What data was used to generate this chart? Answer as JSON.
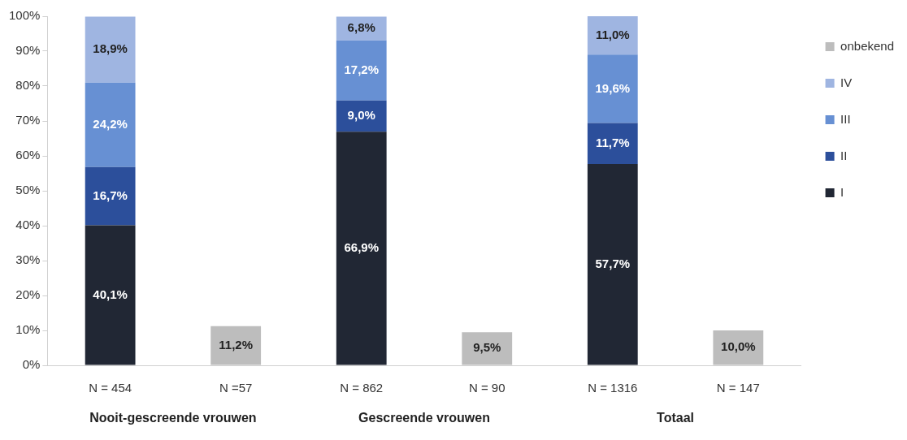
{
  "chart_data": {
    "type": "bar",
    "stacked": true,
    "categories": [
      "N = 454",
      "N =57",
      "N = 862",
      "N = 90",
      "N = 1316",
      "N = 147"
    ],
    "series": [
      {
        "name": "I",
        "color": "#212734",
        "values": [
          40.1,
          null,
          66.9,
          null,
          57.7,
          null
        ],
        "value_labels": [
          "40,1%",
          null,
          "66,9%",
          null,
          "57,7%",
          null
        ]
      },
      {
        "name": "II",
        "color": "#2c4f9b",
        "values": [
          16.7,
          null,
          9.0,
          null,
          11.7,
          null
        ],
        "value_labels": [
          "16,7%",
          null,
          "9,0%",
          null,
          "11,7%",
          null
        ]
      },
      {
        "name": "III",
        "color": "#6790d3",
        "values": [
          24.2,
          null,
          17.2,
          null,
          19.6,
          null
        ],
        "value_labels": [
          "24,2%",
          null,
          "17,2%",
          null,
          "19,6%",
          null
        ]
      },
      {
        "name": "IV",
        "color": "#9fb5e1",
        "values": [
          18.9,
          null,
          6.8,
          null,
          11.0,
          null
        ],
        "value_labels": [
          "18,9%",
          null,
          "6,8%",
          null,
          "11,0%",
          null
        ]
      },
      {
        "name": "onbekend",
        "color": "#bdbdbd",
        "values": [
          null,
          11.2,
          null,
          9.5,
          null,
          10.0
        ],
        "value_labels": [
          null,
          "11,2%",
          null,
          "9,5%",
          null,
          "10,0%"
        ]
      }
    ],
    "ylim": [
      0,
      100
    ],
    "yticks": [
      {
        "value": 0,
        "label": "0%"
      },
      {
        "value": 10,
        "label": "10%"
      },
      {
        "value": 20,
        "label": "20%"
      },
      {
        "value": 30,
        "label": "30%"
      },
      {
        "value": 40,
        "label": "40%"
      },
      {
        "value": 50,
        "label": "50%"
      },
      {
        "value": 60,
        "label": "60%"
      },
      {
        "value": 70,
        "label": "70%"
      },
      {
        "value": 80,
        "label": "80%"
      },
      {
        "value": 90,
        "label": "90%"
      },
      {
        "value": 100,
        "label": "100%"
      }
    ],
    "grid": false,
    "legend": "right",
    "annotations": [
      "Nooit-gescreende vrouwen",
      "Gescreende vrouwen",
      "Totaal"
    ]
  }
}
